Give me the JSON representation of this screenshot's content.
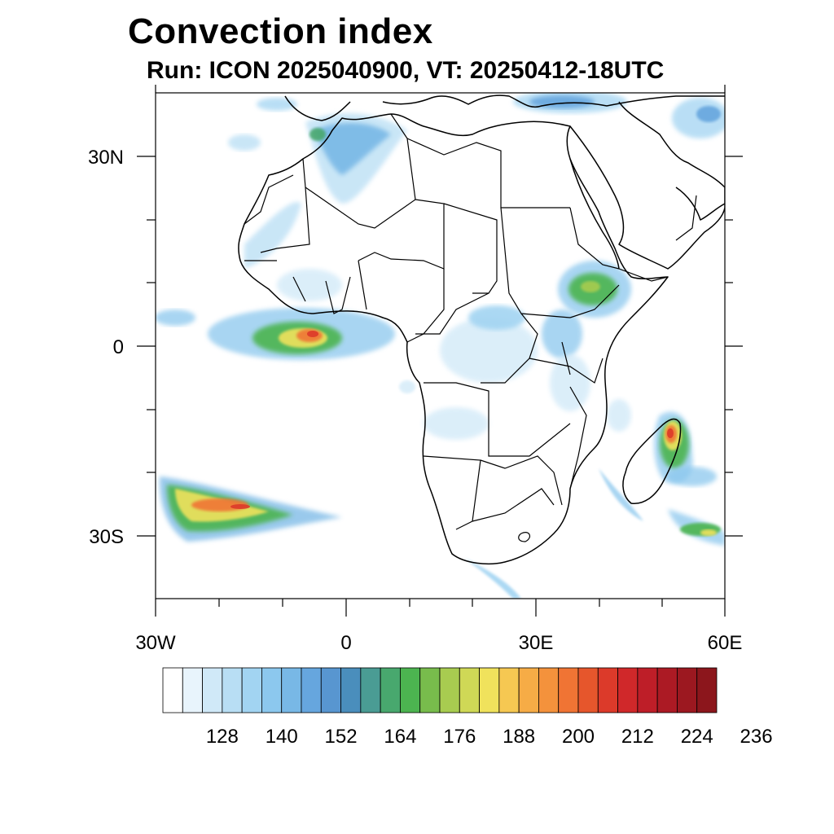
{
  "title": "Convection index",
  "subtitle": "Run: ICON 2025040900,  VT: 20250412-18UTC",
  "axes": {
    "lat_labels": [
      "30N",
      "0",
      "30S"
    ],
    "lon_labels": [
      "30W",
      "0",
      "30E",
      "60E"
    ]
  },
  "colorbar": {
    "labels": [
      "128",
      "140",
      "152",
      "164",
      "176",
      "188",
      "200",
      "212",
      "224",
      "236"
    ],
    "colors": [
      "#ffffff",
      "#e8f4fc",
      "#d0e9f8",
      "#b8def4",
      "#a2d4f2",
      "#8cc8ee",
      "#78b8e6",
      "#66a6de",
      "#5896d0",
      "#4a8ebc",
      "#4a9c94",
      "#48a86e",
      "#4cb450",
      "#78bc4c",
      "#a8cc50",
      "#cfd856",
      "#f0e25c",
      "#f6c852",
      "#f6ac46",
      "#f4923c",
      "#f07434",
      "#e6562c",
      "#dc3a2a",
      "#d0282a",
      "#be1e28",
      "#ac1a24",
      "#9c1820",
      "#8c161c"
    ]
  },
  "regions": [
    {
      "name": "gulf-of-guinea-convection",
      "colors": [
        "#8cc8ee",
        "#4cb450",
        "#f0e25c",
        "#f07434",
        "#dc3a2a"
      ]
    },
    {
      "name": "south-atlantic-convection",
      "colors": [
        "#78b8e6",
        "#4cb450",
        "#f0e25c",
        "#f07434",
        "#dc3a2a"
      ]
    },
    {
      "name": "madagascar-convection",
      "colors": [
        "#8cc8ee",
        "#4cb450",
        "#f0e25c",
        "#f07434",
        "#dc3a2a"
      ]
    },
    {
      "name": "ethiopia-convection",
      "colors": [
        "#8cc8ee",
        "#4cb450",
        "#a8cc50"
      ]
    },
    {
      "name": "mediterranean-convection",
      "colors": [
        "#a2d4f2",
        "#66a6de",
        "#4a8ebc"
      ]
    },
    {
      "name": "northwest-africa-convection",
      "colors": [
        "#b8def4",
        "#78b8e6",
        "#48a86e"
      ]
    },
    {
      "name": "central-africa-convection",
      "colors": [
        "#d0e9f8",
        "#a2d4f2"
      ]
    },
    {
      "name": "southeast-indian-ocean-convection",
      "colors": [
        "#8cc8ee",
        "#4cb450",
        "#f0e25c"
      ]
    }
  ]
}
